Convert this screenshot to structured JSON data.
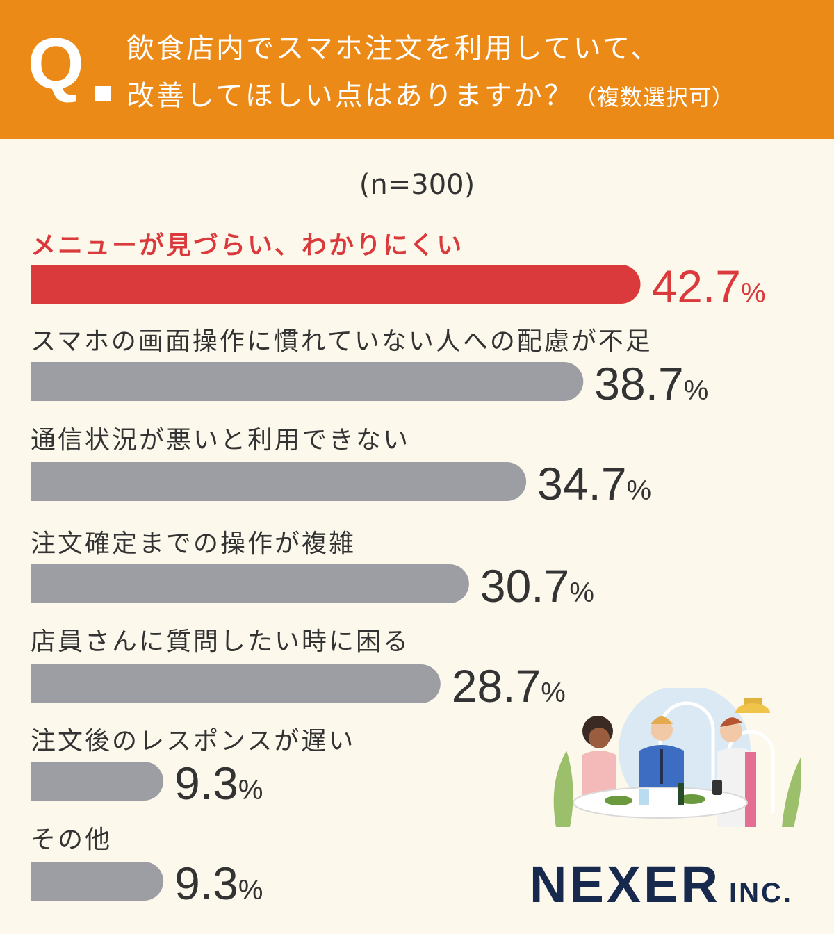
{
  "header": {
    "q_label": "Q",
    "question_line1": "飲食店内でスマホ注文を利用していて、",
    "question_line2": "改善してほしい点はありますか？",
    "question_note": "（複数選択可）"
  },
  "sample_size": "(n=300)",
  "colors": {
    "header_bg": "#ec8a17",
    "highlight": "#da3a3c",
    "bar": "#9c9ea3",
    "background": "#fcf8ec"
  },
  "chart_data": {
    "type": "bar",
    "orientation": "horizontal",
    "categories": [
      "メニューが見づらい、わかりにくい",
      "スマホの画面操作に慣れていない人への配慮が不足",
      "通信状況が悪いと利用できない",
      "注文確定までの操作が複雑",
      "店員さんに質問したい時に困る",
      "注文後のレスポンスが遅い",
      "その他"
    ],
    "values": [
      42.7,
      38.7,
      34.7,
      30.7,
      28.7,
      9.3,
      9.3
    ],
    "value_labels": [
      "42.7",
      "38.7",
      "34.7",
      "30.7",
      "28.7",
      "9.3",
      "9.3"
    ],
    "unit": "%",
    "highlight_index": 0
  },
  "logo": {
    "name": "NEXER",
    "suffix": "INC."
  }
}
